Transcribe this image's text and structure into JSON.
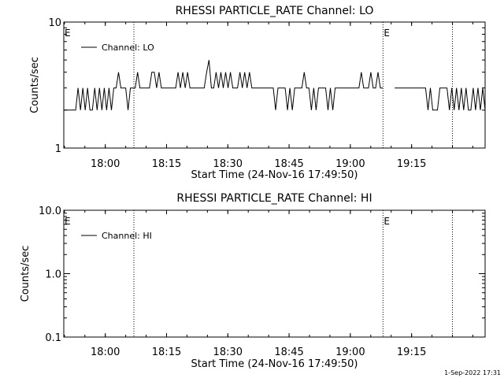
{
  "footer": {
    "timestamp": "1-Sep-2022 17:31"
  },
  "chart_data": [
    {
      "type": "line",
      "title": "RHESSI PARTICLE_RATE Channel: LO",
      "xlabel": "Start Time (24-Nov-16 17:49:50)",
      "ylabel": "Counts/sec",
      "y_scale": "log",
      "ylim": [
        1,
        10
      ],
      "y_ticks": [
        1,
        10
      ],
      "y_tick_labels": [
        "1",
        "10"
      ],
      "xlim": [
        "17:49:50",
        "19:33:00"
      ],
      "x_ticks": [
        "18:00",
        "18:15",
        "18:30",
        "18:45",
        "19:00",
        "19:15"
      ],
      "grid": false,
      "legend": {
        "position": "top-left",
        "entries": [
          "Channel: LO"
        ]
      },
      "event_lines": [
        "18:07:00",
        "19:08:00",
        "19:25:00"
      ],
      "event_marks": [
        {
          "time": "17:49:50",
          "label": "E"
        },
        {
          "time": "19:08:00",
          "label": "E"
        }
      ],
      "series": [
        {
          "name": "Channel: LO",
          "values": [
            2,
            2,
            2,
            2,
            2,
            2,
            3,
            2,
            3,
            2,
            3,
            2,
            2,
            3,
            2,
            3,
            2,
            3,
            2,
            3,
            2,
            3,
            3,
            4,
            3,
            3,
            3,
            2,
            3,
            3,
            3,
            4,
            3,
            3,
            3,
            3,
            3,
            4,
            4,
            3,
            4,
            3,
            3,
            3,
            3,
            3,
            3,
            3,
            4,
            3,
            4,
            3,
            4,
            3,
            3,
            3,
            3,
            3,
            3,
            3,
            4,
            5,
            3,
            3,
            4,
            3,
            4,
            3,
            4,
            3,
            4,
            3,
            3,
            3,
            4,
            3,
            4,
            3,
            4,
            3,
            3,
            3,
            3,
            3,
            3,
            3,
            3,
            3,
            3,
            2,
            3,
            3,
            3,
            3,
            2,
            3,
            2,
            3,
            3,
            3,
            3,
            4,
            3,
            3,
            2,
            3,
            2,
            3,
            3,
            3,
            3,
            2,
            3,
            2,
            3,
            3,
            3,
            3,
            3,
            3,
            3,
            3,
            3,
            3,
            3,
            4,
            3,
            3,
            3,
            4,
            3,
            3,
            4,
            3,
            3,
            3,
            3,
            3,
            3,
            3,
            3,
            3,
            3,
            3,
            3,
            3,
            3,
            3,
            3,
            3,
            3,
            3,
            3,
            2,
            3,
            2,
            2,
            2,
            3,
            3,
            3,
            3,
            2,
            3,
            2,
            3,
            2,
            3,
            2,
            3,
            2,
            2,
            3,
            2,
            3,
            2,
            3,
            2
          ]
        }
      ]
    },
    {
      "type": "line",
      "title": "RHESSI PARTICLE_RATE Channel: HI",
      "xlabel": "Start Time (24-Nov-16 17:49:50)",
      "ylabel": "Counts/sec",
      "y_scale": "log",
      "ylim": [
        0.1,
        10
      ],
      "y_ticks": [
        0.1,
        1,
        10
      ],
      "y_tick_labels": [
        "0.1",
        "1.0",
        "10.0"
      ],
      "xlim": [
        "17:49:50",
        "19:33:00"
      ],
      "x_ticks": [
        "18:00",
        "18:15",
        "18:30",
        "18:45",
        "19:00",
        "19:15"
      ],
      "grid": false,
      "legend": {
        "position": "top-left",
        "entries": [
          "Channel: HI"
        ]
      },
      "event_lines": [
        "18:07:00",
        "19:08:00",
        "19:25:00"
      ],
      "event_marks": [
        {
          "time": "17:49:50",
          "label": "E"
        },
        {
          "time": "19:08:00",
          "label": "E"
        }
      ],
      "series": [
        {
          "name": "Channel: HI",
          "values": []
        }
      ]
    }
  ]
}
